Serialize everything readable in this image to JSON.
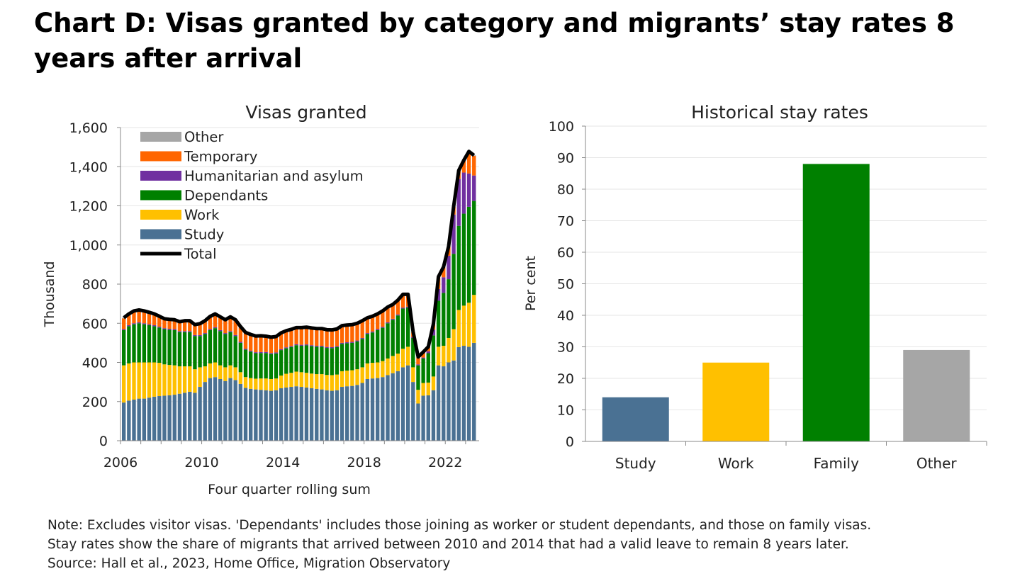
{
  "title": "Chart D: Visas granted by category and migrants’ stay rates 8 years after arrival",
  "notes": [
    "Note: Excludes visitor visas. 'Dependants' includes those joining as worker or student dependants, and those on family visas.",
    "Stay rates show the share of migrants that arrived between 2010 and 2014 that had a valid leave to remain 8 years later.",
    "Source: Hall et al., 2023, Home Office, Migration Observatory"
  ],
  "colors": {
    "study": "#4a7193",
    "work": "#ffc000",
    "dependants": "#008000",
    "humanitarian": "#7030a0",
    "temporary": "#ff6600",
    "other": "#a6a6a6",
    "total": "#000000"
  },
  "chart_data": [
    {
      "type": "bar",
      "stacked": true,
      "title": "Visas granted",
      "xlabel": "Four quarter rolling sum",
      "ylabel": "Thousand",
      "ylim": [
        0,
        1600
      ],
      "yticks": [
        "0",
        "200",
        "400",
        "600",
        "800",
        "1,000",
        "1,200",
        "1,400",
        "1,600"
      ],
      "ytick_values": [
        0,
        200,
        400,
        600,
        800,
        1000,
        1200,
        1400,
        1600
      ],
      "xticks": [
        "2006",
        "2010",
        "2014",
        "2018",
        "2022"
      ],
      "start_year": 2006,
      "legend_position": "top-left",
      "legend": [
        "Other",
        "Temporary",
        "Humanitarian and asylum",
        "Dependants",
        "Work",
        "Study",
        "Total"
      ],
      "series": [
        {
          "name": "Study",
          "key": "study",
          "values": [
            195,
            205,
            210,
            215,
            215,
            220,
            225,
            228,
            230,
            232,
            235,
            240,
            245,
            250,
            245,
            275,
            300,
            320,
            325,
            315,
            305,
            320,
            310,
            290,
            270,
            265,
            262,
            260,
            258,
            255,
            258,
            268,
            272,
            275,
            278,
            275,
            272,
            268,
            265,
            262,
            258,
            255,
            258,
            275,
            278,
            280,
            285,
            295,
            315,
            318,
            320,
            325,
            335,
            345,
            355,
            375,
            385,
            300,
            190,
            230,
            232,
            258,
            385,
            380,
            400,
            410,
            478,
            485,
            480,
            500
          ]
        },
        {
          "name": "Work",
          "key": "work",
          "values": [
            190,
            190,
            190,
            185,
            185,
            180,
            175,
            170,
            160,
            155,
            150,
            140,
            135,
            130,
            120,
            100,
            80,
            75,
            75,
            70,
            70,
            65,
            65,
            60,
            55,
            55,
            55,
            58,
            60,
            60,
            60,
            65,
            70,
            72,
            75,
            75,
            75,
            75,
            75,
            78,
            78,
            80,
            80,
            80,
            80,
            80,
            80,
            80,
            80,
            80,
            80,
            82,
            85,
            88,
            90,
            95,
            95,
            75,
            70,
            65,
            65,
            70,
            95,
            105,
            125,
            160,
            190,
            205,
            225,
            245
          ]
        },
        {
          "name": "Dependants",
          "key": "dependants",
          "values": [
            180,
            190,
            195,
            200,
            195,
            190,
            185,
            180,
            180,
            180,
            180,
            175,
            175,
            175,
            170,
            160,
            165,
            170,
            175,
            175,
            170,
            170,
            160,
            150,
            140,
            135,
            130,
            130,
            130,
            128,
            128,
            130,
            130,
            132,
            135,
            135,
            140,
            140,
            140,
            140,
            138,
            138,
            140,
            140,
            140,
            140,
            142,
            145,
            150,
            155,
            165,
            170,
            180,
            185,
            195,
            205,
            200,
            150,
            125,
            125,
            150,
            210,
            235,
            270,
            300,
            385,
            430,
            470,
            490,
            480
          ]
        },
        {
          "name": "Humanitarian and asylum",
          "key": "humanitarian",
          "values": [
            5,
            5,
            5,
            5,
            5,
            5,
            5,
            5,
            5,
            5,
            5,
            5,
            5,
            5,
            5,
            5,
            5,
            5,
            5,
            5,
            5,
            5,
            5,
            5,
            5,
            5,
            5,
            5,
            5,
            5,
            5,
            5,
            5,
            5,
            5,
            5,
            5,
            5,
            5,
            5,
            5,
            5,
            5,
            5,
            5,
            5,
            5,
            5,
            5,
            5,
            5,
            5,
            5,
            5,
            5,
            5,
            5,
            5,
            5,
            5,
            10,
            30,
            60,
            80,
            120,
            200,
            240,
            210,
            170,
            130
          ]
        },
        {
          "name": "Temporary",
          "key": "temporary",
          "values": [
            55,
            55,
            60,
            60,
            60,
            58,
            55,
            50,
            45,
            45,
            45,
            45,
            50,
            50,
            50,
            55,
            60,
            62,
            65,
            65,
            65,
            70,
            75,
            75,
            80,
            80,
            80,
            80,
            78,
            78,
            78,
            80,
            82,
            82,
            82,
            85,
            85,
            85,
            85,
            85,
            85,
            85,
            85,
            85,
            85,
            85,
            85,
            85,
            75,
            75,
            75,
            78,
            75,
            70,
            70,
            65,
            60,
            25,
            35,
            25,
            20,
            25,
            60,
            50,
            45,
            40,
            40,
            60,
            110,
            100
          ]
        },
        {
          "name": "Other",
          "key": "other",
          "values": [
            3,
            3,
            3,
            3,
            3,
            3,
            3,
            3,
            3,
            3,
            3,
            3,
            3,
            3,
            3,
            3,
            3,
            3,
            3,
            3,
            3,
            3,
            3,
            3,
            3,
            3,
            3,
            3,
            3,
            3,
            3,
            3,
            3,
            3,
            3,
            3,
            3,
            3,
            3,
            3,
            3,
            3,
            3,
            3,
            3,
            3,
            3,
            3,
            3,
            3,
            3,
            3,
            3,
            3,
            3,
            3,
            3,
            3,
            3,
            3,
            3,
            3,
            3,
            3,
            3,
            3,
            3,
            3,
            3,
            3
          ]
        }
      ]
    },
    {
      "type": "bar",
      "title": "Historical stay rates",
      "ylabel": "Per cent",
      "ylim": [
        0,
        100
      ],
      "yticks": [
        "0",
        "10",
        "20",
        "30",
        "40",
        "50",
        "60",
        "70",
        "80",
        "90",
        "100"
      ],
      "ytick_values": [
        0,
        10,
        20,
        30,
        40,
        50,
        60,
        70,
        80,
        90,
        100
      ],
      "categories": [
        "Study",
        "Work",
        "Family",
        "Other"
      ],
      "values": [
        14,
        25,
        88,
        29
      ],
      "bar_colors": [
        "#4a7193",
        "#ffc000",
        "#008000",
        "#a6a6a6"
      ]
    }
  ]
}
